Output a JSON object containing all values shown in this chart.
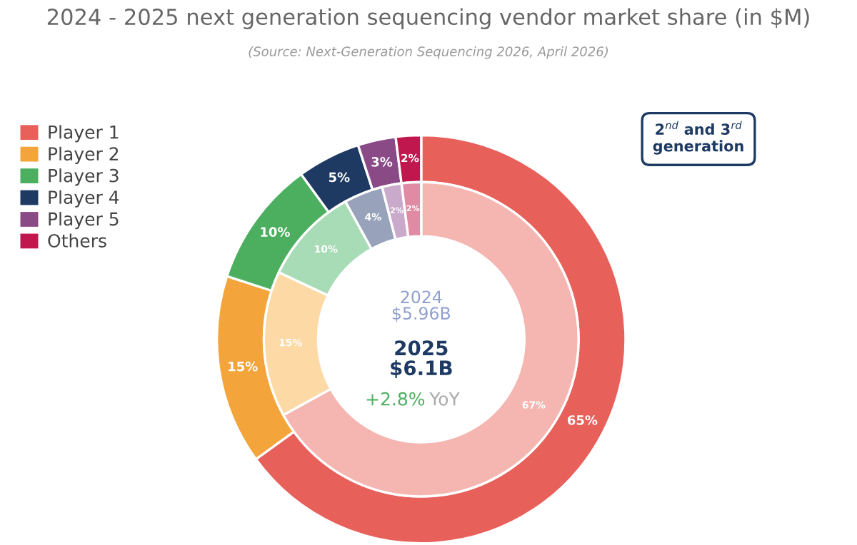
{
  "chart_data": {
    "type": "donut",
    "title": "2024 - 2025 next generation sequencing vendor market share (in $M)",
    "categories": [
      "Player 1",
      "Player 2",
      "Player 3",
      "Player 4",
      "Player 5",
      "Others"
    ],
    "series": [
      {
        "values": [
          65,
          15,
          10,
          5,
          3,
          2
        ],
        "value_labels": [
          "65%",
          "15%",
          "10%",
          "5%",
          "3%",
          "2%"
        ],
        "colors": [
          "#e8605a",
          "#f3a43a",
          "#4caf60",
          "#1e3a63",
          "#8a4a86",
          "#c0174f"
        ]
      },
      {
        "values": [
          67,
          15,
          10,
          4,
          2,
          2
        ],
        "value_labels": [
          "67%",
          "15%",
          "10%",
          "4%",
          "2%",
          "2%"
        ],
        "colors": [
          "#f5b5b0",
          "#fcd9a5",
          "#a8dcb6",
          "#98a3bb",
          "#c9aacb",
          "#e08aa4"
        ]
      }
    ],
    "legend": "top left",
    "annotations": [
      "(Source: Next-Generation Sequencing 2026, April 2026)",
      "2024\n$5.96B",
      "2025\n$6.1B",
      "+2.8%",
      "YoY",
      "2$^{nd}$ and 3$^{rd}$\ngeneration"
    ]
  }
}
